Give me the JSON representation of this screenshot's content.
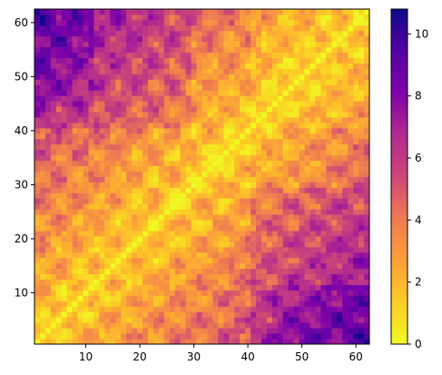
{
  "chart_data": {
    "type": "heatmap",
    "title": "",
    "xlabel": "",
    "ylabel": "",
    "colormap": "plasma_r",
    "n": 62,
    "x_range": [
      1,
      62
    ],
    "y_range": [
      1,
      62
    ],
    "value_range": [
      0,
      10.8
    ],
    "symmetric": true,
    "diagonal_value": 0,
    "x_ticks": [
      {
        "value": 10,
        "label": "10"
      },
      {
        "value": 20,
        "label": "20"
      },
      {
        "value": 30,
        "label": "30"
      },
      {
        "value": 40,
        "label": "40"
      },
      {
        "value": 50,
        "label": "50"
      },
      {
        "value": 60,
        "label": "60"
      }
    ],
    "y_ticks": [
      {
        "value": 10,
        "label": "10"
      },
      {
        "value": 20,
        "label": "20"
      },
      {
        "value": 30,
        "label": "30"
      },
      {
        "value": 40,
        "label": "40"
      },
      {
        "value": 50,
        "label": "50"
      },
      {
        "value": 60,
        "label": "60"
      }
    ],
    "colorbar_ticks": [
      {
        "value": 0,
        "label": "0"
      },
      {
        "value": 2,
        "label": "2"
      },
      {
        "value": 4,
        "label": "4"
      },
      {
        "value": 6,
        "label": "6"
      },
      {
        "value": 8,
        "label": "8"
      },
      {
        "value": 10,
        "label": "10"
      }
    ],
    "grid": false
  }
}
